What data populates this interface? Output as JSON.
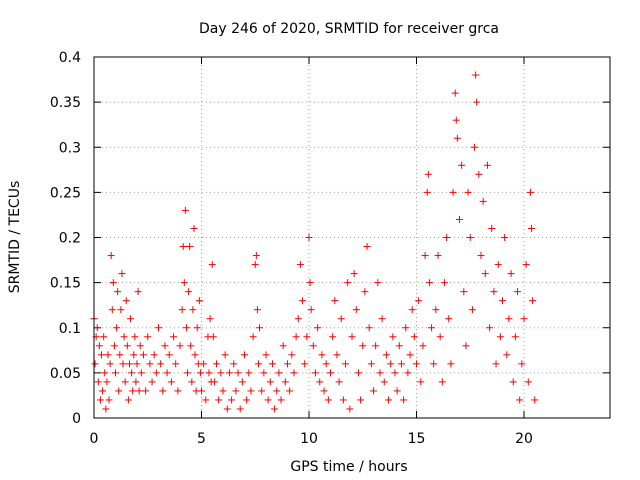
{
  "chart_data": {
    "type": "scatter",
    "title": "Day 246 of 2020, SRMTID for receiver grca",
    "xlabel": "GPS time / hours",
    "ylabel": "SRMTID / TECUs",
    "xlim": [
      0,
      24
    ],
    "ylim": [
      0,
      0.4
    ],
    "x_ticks": [
      0,
      5,
      10,
      15,
      20
    ],
    "x_tick_labels": [
      "0",
      "5",
      "10",
      "15",
      "20"
    ],
    "y_ticks": [
      0,
      0.05,
      0.1,
      0.15,
      0.2,
      0.25,
      0.3,
      0.35,
      0.4
    ],
    "y_tick_labels": [
      "0",
      "0.05",
      "0.1",
      "0.15",
      "0.2",
      "0.25",
      "0.3",
      "0.35",
      "0.4"
    ],
    "grid": true,
    "marker": "+",
    "marker_color": "#ff0000",
    "data_x_range_hours": [
      0,
      20.5
    ],
    "series": [
      {
        "name": "SRMTID",
        "color": "#ff0000",
        "points": [
          [
            0.0,
            0.11
          ],
          [
            0.05,
            0.06
          ],
          [
            0.1,
            0.09
          ],
          [
            0.15,
            0.1
          ],
          [
            0.2,
            0.04
          ],
          [
            0.25,
            0.08
          ],
          [
            0.3,
            0.02
          ],
          [
            0.35,
            0.07
          ],
          [
            0.4,
            0.03
          ],
          [
            0.45,
            0.09
          ],
          [
            0.5,
            0.05
          ],
          [
            0.55,
            0.01
          ],
          [
            0.6,
            0.04
          ],
          [
            0.65,
            0.07
          ],
          [
            0.7,
            0.02
          ],
          [
            0.75,
            0.06
          ],
          [
            0.8,
            0.18
          ],
          [
            0.85,
            0.12
          ],
          [
            0.9,
            0.15
          ],
          [
            0.95,
            0.08
          ],
          [
            1.0,
            0.05
          ],
          [
            1.05,
            0.1
          ],
          [
            1.1,
            0.14
          ],
          [
            1.15,
            0.03
          ],
          [
            1.2,
            0.07
          ],
          [
            1.25,
            0.12
          ],
          [
            1.3,
            0.16
          ],
          [
            1.35,
            0.06
          ],
          [
            1.4,
            0.09
          ],
          [
            1.45,
            0.04
          ],
          [
            1.5,
            0.13
          ],
          [
            1.55,
            0.08
          ],
          [
            1.6,
            0.02
          ],
          [
            1.65,
            0.06
          ],
          [
            1.7,
            0.11
          ],
          [
            1.75,
            0.05
          ],
          [
            1.8,
            0.03
          ],
          [
            1.85,
            0.07
          ],
          [
            1.9,
            0.09
          ],
          [
            1.95,
            0.04
          ],
          [
            2.0,
            0.06
          ],
          [
            2.05,
            0.14
          ],
          [
            2.1,
            0.03
          ],
          [
            2.15,
            0.08
          ],
          [
            2.2,
            0.05
          ],
          [
            2.3,
            0.07
          ],
          [
            2.4,
            0.03
          ],
          [
            2.5,
            0.09
          ],
          [
            2.6,
            0.06
          ],
          [
            2.7,
            0.04
          ],
          [
            2.8,
            0.07
          ],
          [
            2.9,
            0.05
          ],
          [
            3.0,
            0.1
          ],
          [
            3.1,
            0.06
          ],
          [
            3.2,
            0.03
          ],
          [
            3.3,
            0.08
          ],
          [
            3.4,
            0.05
          ],
          [
            3.5,
            0.07
          ],
          [
            3.6,
            0.04
          ],
          [
            3.7,
            0.09
          ],
          [
            3.8,
            0.06
          ],
          [
            3.9,
            0.03
          ],
          [
            4.0,
            0.08
          ],
          [
            4.1,
            0.12
          ],
          [
            4.15,
            0.19
          ],
          [
            4.2,
            0.15
          ],
          [
            4.25,
            0.23
          ],
          [
            4.3,
            0.1
          ],
          [
            4.35,
            0.05
          ],
          [
            4.4,
            0.14
          ],
          [
            4.45,
            0.19
          ],
          [
            4.5,
            0.08
          ],
          [
            4.55,
            0.04
          ],
          [
            4.6,
            0.12
          ],
          [
            4.65,
            0.21
          ],
          [
            4.7,
            0.07
          ],
          [
            4.75,
            0.03
          ],
          [
            4.8,
            0.1
          ],
          [
            4.85,
            0.06
          ],
          [
            4.9,
            0.13
          ],
          [
            4.95,
            0.05
          ],
          [
            5.0,
            0.03
          ],
          [
            5.1,
            0.06
          ],
          [
            5.2,
            0.02
          ],
          [
            5.3,
            0.09
          ],
          [
            5.35,
            0.05
          ],
          [
            5.4,
            0.11
          ],
          [
            5.45,
            0.04
          ],
          [
            5.5,
            0.17
          ],
          [
            5.55,
            0.09
          ],
          [
            5.6,
            0.04
          ],
          [
            5.7,
            0.06
          ],
          [
            5.8,
            0.02
          ],
          [
            5.9,
            0.05
          ],
          [
            6.0,
            0.03
          ],
          [
            6.1,
            0.07
          ],
          [
            6.2,
            0.01
          ],
          [
            6.3,
            0.05
          ],
          [
            6.4,
            0.02
          ],
          [
            6.5,
            0.06
          ],
          [
            6.6,
            0.03
          ],
          [
            6.7,
            0.05
          ],
          [
            6.8,
            0.01
          ],
          [
            6.9,
            0.04
          ],
          [
            7.0,
            0.07
          ],
          [
            7.1,
            0.02
          ],
          [
            7.2,
            0.05
          ],
          [
            7.3,
            0.03
          ],
          [
            7.4,
            0.09
          ],
          [
            7.5,
            0.17
          ],
          [
            7.55,
            0.18
          ],
          [
            7.6,
            0.12
          ],
          [
            7.65,
            0.06
          ],
          [
            7.7,
            0.1
          ],
          [
            7.8,
            0.03
          ],
          [
            7.9,
            0.05
          ],
          [
            8.0,
            0.07
          ],
          [
            8.1,
            0.02
          ],
          [
            8.2,
            0.04
          ],
          [
            8.3,
            0.06
          ],
          [
            8.4,
            0.01
          ],
          [
            8.5,
            0.03
          ],
          [
            8.6,
            0.05
          ],
          [
            8.7,
            0.02
          ],
          [
            8.8,
            0.08
          ],
          [
            8.9,
            0.04
          ],
          [
            9.0,
            0.06
          ],
          [
            9.1,
            0.03
          ],
          [
            9.2,
            0.07
          ],
          [
            9.3,
            0.05
          ],
          [
            9.4,
            0.09
          ],
          [
            9.5,
            0.11
          ],
          [
            9.6,
            0.17
          ],
          [
            9.7,
            0.13
          ],
          [
            9.8,
            0.06
          ],
          [
            9.9,
            0.09
          ],
          [
            10.0,
            0.2
          ],
          [
            10.05,
            0.15
          ],
          [
            10.1,
            0.12
          ],
          [
            10.2,
            0.08
          ],
          [
            10.3,
            0.05
          ],
          [
            10.4,
            0.1
          ],
          [
            10.5,
            0.04
          ],
          [
            10.6,
            0.07
          ],
          [
            10.7,
            0.03
          ],
          [
            10.8,
            0.06
          ],
          [
            10.9,
            0.02
          ],
          [
            11.0,
            0.05
          ],
          [
            11.1,
            0.09
          ],
          [
            11.2,
            0.13
          ],
          [
            11.3,
            0.07
          ],
          [
            11.4,
            0.04
          ],
          [
            11.5,
            0.11
          ],
          [
            11.6,
            0.02
          ],
          [
            11.7,
            0.06
          ],
          [
            11.8,
            0.15
          ],
          [
            11.9,
            0.01
          ],
          [
            12.0,
            0.09
          ],
          [
            12.1,
            0.16
          ],
          [
            12.2,
            0.12
          ],
          [
            12.3,
            0.05
          ],
          [
            12.4,
            0.02
          ],
          [
            12.5,
            0.08
          ],
          [
            12.6,
            0.14
          ],
          [
            12.7,
            0.19
          ],
          [
            12.8,
            0.1
          ],
          [
            12.9,
            0.06
          ],
          [
            13.0,
            0.03
          ],
          [
            13.1,
            0.08
          ],
          [
            13.2,
            0.15
          ],
          [
            13.3,
            0.05
          ],
          [
            13.4,
            0.11
          ],
          [
            13.5,
            0.04
          ],
          [
            13.6,
            0.07
          ],
          [
            13.7,
            0.02
          ],
          [
            13.8,
            0.06
          ],
          [
            13.9,
            0.09
          ],
          [
            14.0,
            0.05
          ],
          [
            14.1,
            0.03
          ],
          [
            14.2,
            0.08
          ],
          [
            14.3,
            0.06
          ],
          [
            14.4,
            0.02
          ],
          [
            14.5,
            0.1
          ],
          [
            14.6,
            0.05
          ],
          [
            14.7,
            0.07
          ],
          [
            14.8,
            0.12
          ],
          [
            14.9,
            0.09
          ],
          [
            15.0,
            0.06
          ],
          [
            15.1,
            0.13
          ],
          [
            15.2,
            0.04
          ],
          [
            15.3,
            0.08
          ],
          [
            15.4,
            0.18
          ],
          [
            15.5,
            0.25
          ],
          [
            15.55,
            0.27
          ],
          [
            15.6,
            0.15
          ],
          [
            15.7,
            0.1
          ],
          [
            15.8,
            0.06
          ],
          [
            15.9,
            0.12
          ],
          [
            16.0,
            0.18
          ],
          [
            16.1,
            0.09
          ],
          [
            16.2,
            0.04
          ],
          [
            16.3,
            0.15
          ],
          [
            16.4,
            0.2
          ],
          [
            16.5,
            0.11
          ],
          [
            16.6,
            0.06
          ],
          [
            16.7,
            0.25
          ],
          [
            16.8,
            0.36
          ],
          [
            16.85,
            0.33
          ],
          [
            16.9,
            0.31
          ],
          [
            17.0,
            0.22
          ],
          [
            17.1,
            0.28
          ],
          [
            17.2,
            0.14
          ],
          [
            17.3,
            0.08
          ],
          [
            17.4,
            0.25
          ],
          [
            17.5,
            0.2
          ],
          [
            17.6,
            0.12
          ],
          [
            17.7,
            0.3
          ],
          [
            17.75,
            0.38
          ],
          [
            17.8,
            0.35
          ],
          [
            17.9,
            0.27
          ],
          [
            18.0,
            0.18
          ],
          [
            18.1,
            0.24
          ],
          [
            18.2,
            0.16
          ],
          [
            18.3,
            0.28
          ],
          [
            18.4,
            0.1
          ],
          [
            18.5,
            0.21
          ],
          [
            18.6,
            0.14
          ],
          [
            18.7,
            0.06
          ],
          [
            18.8,
            0.17
          ],
          [
            18.9,
            0.09
          ],
          [
            19.0,
            0.13
          ],
          [
            19.1,
            0.2
          ],
          [
            19.2,
            0.07
          ],
          [
            19.3,
            0.11
          ],
          [
            19.4,
            0.16
          ],
          [
            19.5,
            0.04
          ],
          [
            19.6,
            0.09
          ],
          [
            19.7,
            0.14
          ],
          [
            19.8,
            0.02
          ],
          [
            19.9,
            0.06
          ],
          [
            20.0,
            0.11
          ],
          [
            20.1,
            0.17
          ],
          [
            20.2,
            0.04
          ],
          [
            20.3,
            0.25
          ],
          [
            20.35,
            0.21
          ],
          [
            20.4,
            0.13
          ],
          [
            20.5,
            0.02
          ]
        ]
      }
    ]
  }
}
